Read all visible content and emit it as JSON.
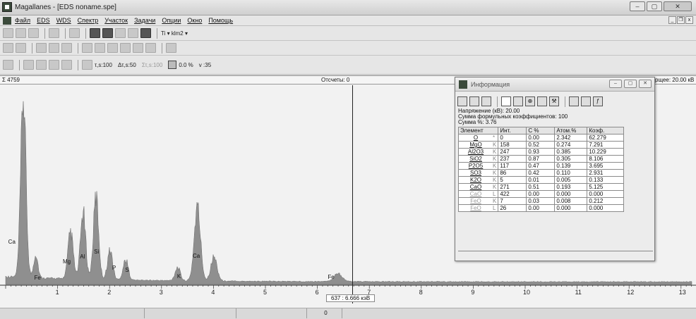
{
  "window": {
    "title": "Magallanes - [EDS noname.spe]",
    "min": "–",
    "max": "▢",
    "close": "✕"
  },
  "menu": {
    "items": [
      "Файл",
      "EDS",
      "WDS",
      "Спектр",
      "Участок",
      "Задачи",
      "Опции",
      "Окно",
      "Помощь"
    ],
    "mdi_min": "_",
    "mdi_restore": "❐",
    "mdi_close": "x"
  },
  "toolbar1": {
    "element_text": "Ti  ▾ klm2 ▾"
  },
  "toolbar3": {
    "tau": "τ,s:100",
    "dtau": "Δτ,s:50",
    "sigma_tau": "Στ,s:100",
    "pct": "0.0 %",
    "v": "v :35"
  },
  "plot": {
    "sum_label": "Σ 4759",
    "counts_label": "Отсчеты: 0",
    "right_label": "рщее: 20.00 кВ",
    "cursor_label": "637 : 6.666 кэВ",
    "x_ticks": [
      "1",
      "2",
      "3",
      "4",
      "5",
      "6",
      "7",
      "8",
      "9",
      "10",
      "11",
      "12",
      "13"
    ],
    "peak_labels": [
      {
        "text": "Ca"
      },
      {
        "text": "Fe"
      },
      {
        "text": "Mg"
      },
      {
        "text": "Al"
      },
      {
        "text": "Si"
      },
      {
        "text": "P"
      },
      {
        "text": "S"
      },
      {
        "text": "K"
      },
      {
        "text": "Ca"
      },
      {
        "text": "Fe"
      }
    ]
  },
  "info": {
    "title": "Информация",
    "voltage": "Напряжение (кВ): 20.00",
    "formula_sum": "Сумма формульных коэффициентов: 100",
    "sum_pct": "Сумма %:  3.76",
    "columns": [
      "Элемент",
      "Инт.",
      "С %",
      "Атом.%",
      "Коэф."
    ],
    "rows": [
      {
        "el": "O",
        "line": "*",
        "int": "0",
        "c": "0.00",
        "at": "2.342",
        "k": "62.279",
        "dim": false
      },
      {
        "el": "MgO",
        "line": "K",
        "int": "158",
        "c": "0.52",
        "at": "0.274",
        "k": "7.291",
        "dim": false
      },
      {
        "el": "Al2O3",
        "line": "K",
        "int": "247",
        "c": "0.93",
        "at": "0.385",
        "k": "10.229",
        "dim": false
      },
      {
        "el": "SiO2",
        "line": "K",
        "int": "237",
        "c": "0.87",
        "at": "0.305",
        "k": "8.106",
        "dim": false
      },
      {
        "el": "P2O5",
        "line": "K",
        "int": "117",
        "c": "0.47",
        "at": "0.139",
        "k": "3.695",
        "dim": false
      },
      {
        "el": "SO3",
        "line": "K",
        "int": "86",
        "c": "0.42",
        "at": "0.110",
        "k": "2.931",
        "dim": false
      },
      {
        "el": "K2O",
        "line": "K",
        "int": "5",
        "c": "0.01",
        "at": "0.005",
        "k": "0.133",
        "dim": false
      },
      {
        "el": "CaO",
        "line": "K",
        "int": "271",
        "c": "0.51",
        "at": "0.193",
        "k": "5.125",
        "dim": false
      },
      {
        "el": "CaO",
        "line": "L",
        "int": "422",
        "c": "0.00",
        "at": "0.000",
        "k": "0.000",
        "dim": true
      },
      {
        "el": "FeO",
        "line": "K",
        "int": "7",
        "c": "0.03",
        "at": "0.008",
        "k": "0.212",
        "dim": true
      },
      {
        "el": "FeO",
        "line": "L",
        "int": "26",
        "c": "0.00",
        "at": "0.000",
        "k": "0.000",
        "dim": true
      }
    ]
  },
  "statusbar": {
    "center": "0"
  }
}
